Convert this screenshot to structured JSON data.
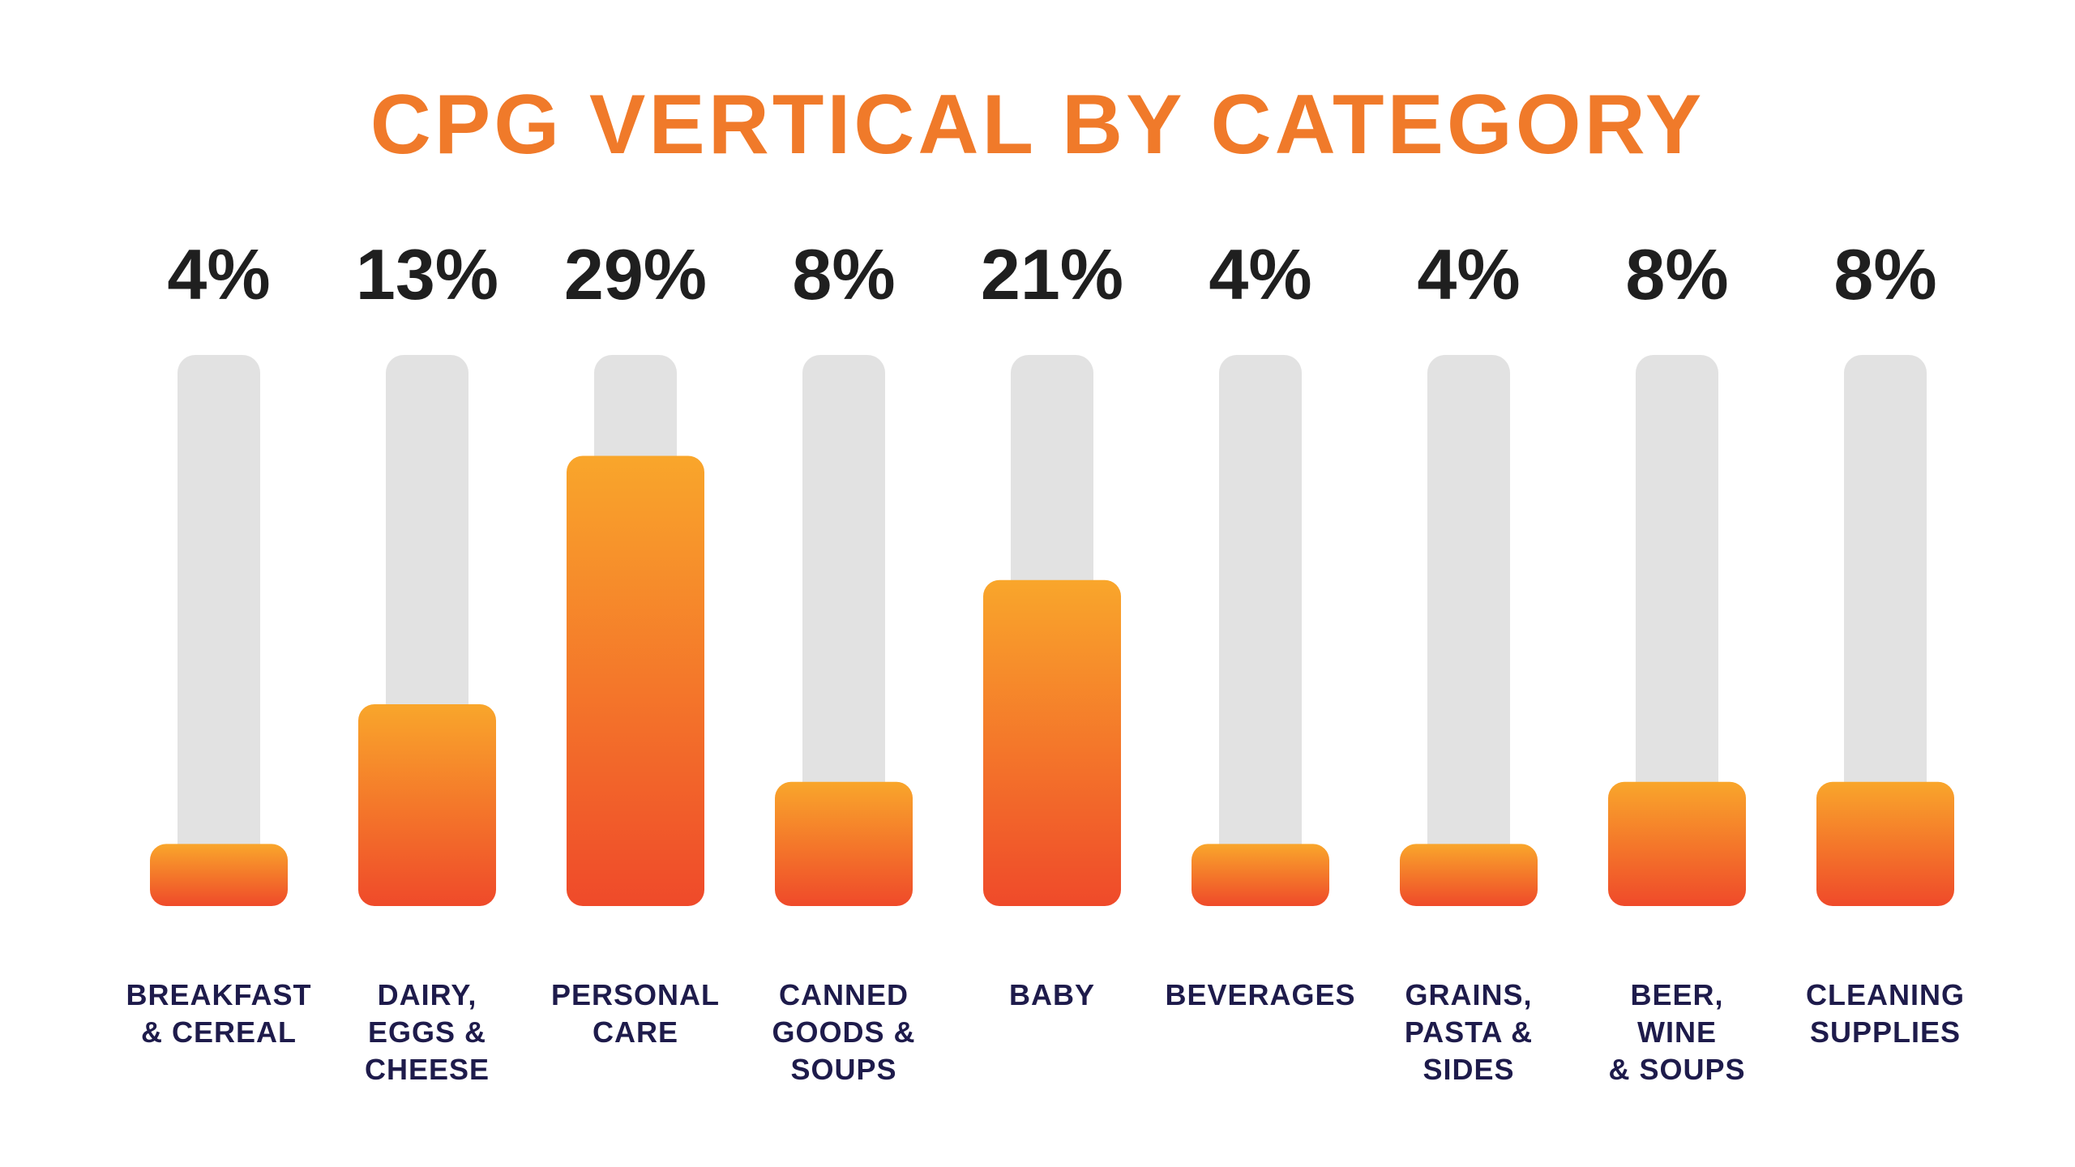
{
  "chart_data": {
    "type": "bar",
    "title": "CPG VERTICAL BY CATEGORY",
    "categories": [
      "BREAKFAST\n& CEREAL",
      "DAIRY,\nEGGS &\nCHEESE",
      "PERSONAL\nCARE",
      "CANNED\nGOODS &\nSOUPS",
      "BABY",
      "BEVERAGES",
      "GRAINS,\nPASTA &\nSIDES",
      "BEER,\nWINE\n& SOUPS",
      "CLEANING\nSUPPLIES"
    ],
    "values": [
      4,
      13,
      29,
      8,
      21,
      4,
      4,
      8,
      8
    ],
    "value_labels": [
      "4%",
      "13%",
      "29%",
      "8%",
      "21%",
      "4%",
      "4%",
      "8%",
      "8%"
    ],
    "ylim": [
      0,
      32
    ],
    "grid": false,
    "legend": "none"
  },
  "colors": {
    "title": "#F07A2A",
    "value_text": "#1F1F1F",
    "label_text": "#1E1B4B",
    "track": "#E2E2E2",
    "bar_top": "#F9A62B",
    "bar_bottom": "#EF4A2A"
  }
}
